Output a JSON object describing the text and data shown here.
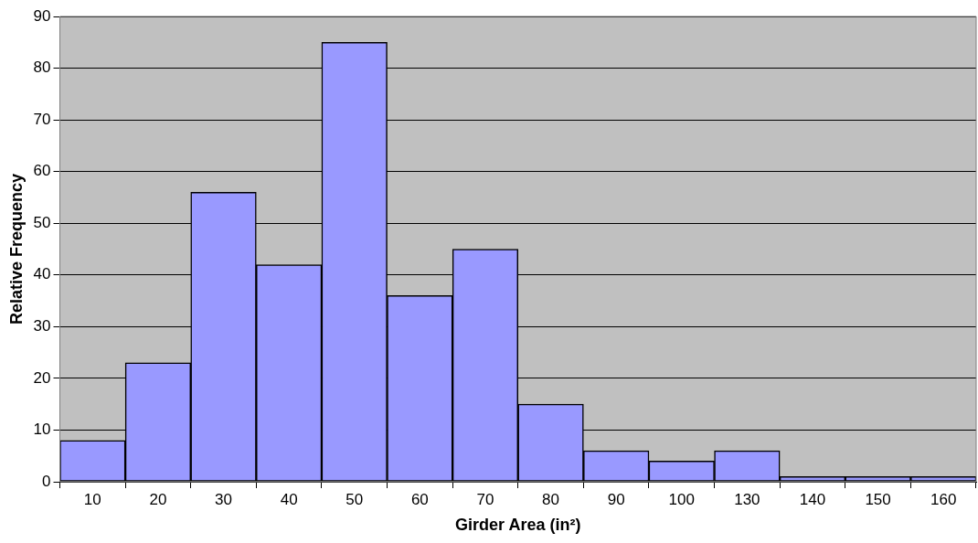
{
  "chart_data": {
    "type": "bar",
    "xlabel": "Girder Area (in²)",
    "ylabel": "Relative Frequency",
    "categories": [
      "10",
      "20",
      "30",
      "40",
      "50",
      "60",
      "70",
      "80",
      "90",
      "100",
      "130",
      "140",
      "150",
      "160"
    ],
    "values": [
      8,
      23,
      56,
      42,
      85,
      36,
      45,
      15,
      6,
      4,
      6,
      1,
      1,
      1
    ],
    "color": "#9999ff",
    "ylim": [
      0,
      90
    ],
    "yticks": [
      0,
      10,
      20,
      30,
      40,
      50,
      60,
      70,
      80,
      90
    ],
    "grid": "y",
    "legend": false
  }
}
